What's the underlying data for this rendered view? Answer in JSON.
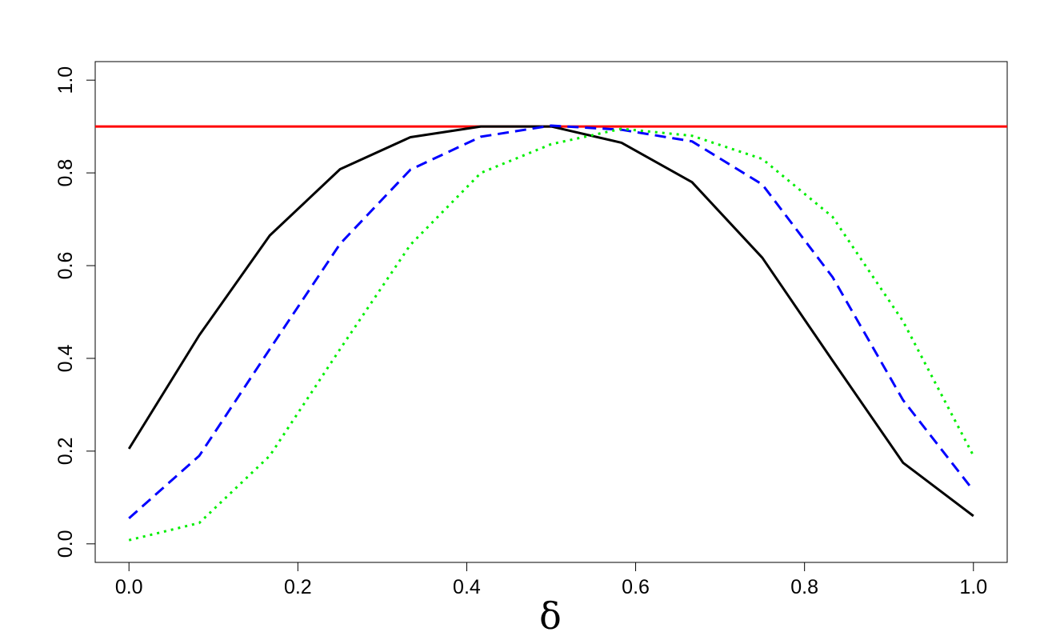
{
  "chart_data": {
    "type": "line",
    "xlabel": "δ",
    "ylabel": "",
    "title": "",
    "xlim": [
      -0.04,
      1.04
    ],
    "ylim": [
      -0.04,
      1.04
    ],
    "xticks": [
      0.0,
      0.2,
      0.4,
      0.6,
      0.8,
      1.0
    ],
    "xtick_labels": [
      "0.0",
      "0.2",
      "0.4",
      "0.6",
      "0.8",
      "1.0"
    ],
    "yticks": [
      0.0,
      0.2,
      0.4,
      0.6,
      0.8,
      1.0
    ],
    "ytick_labels": [
      "0.0",
      "0.2",
      "0.4",
      "0.6",
      "0.8",
      "1.0"
    ],
    "grid": false,
    "x": [
      0.0,
      0.0833,
      0.1667,
      0.25,
      0.3333,
      0.4167,
      0.5,
      0.5833,
      0.6667,
      0.75,
      0.8333,
      0.9167,
      1.0
    ],
    "series": [
      {
        "color": "#000000",
        "style": "solid",
        "values": [
          0.205,
          0.45,
          0.665,
          0.808,
          0.877,
          0.9,
          0.9,
          0.865,
          0.78,
          0.617,
          0.395,
          0.175,
          0.06
        ]
      },
      {
        "color": "#0000ff",
        "style": "dashed",
        "values": [
          0.055,
          0.19,
          0.42,
          0.647,
          0.807,
          0.878,
          0.902,
          0.893,
          0.868,
          0.775,
          0.575,
          0.31,
          0.115
        ]
      },
      {
        "color": "#00ee00",
        "style": "dotted",
        "values": [
          0.008,
          0.045,
          0.19,
          0.42,
          0.645,
          0.8,
          0.862,
          0.895,
          0.88,
          0.83,
          0.705,
          0.48,
          0.19
        ]
      }
    ],
    "reference_line": {
      "y": 0.9,
      "color": "#ff0000"
    }
  }
}
